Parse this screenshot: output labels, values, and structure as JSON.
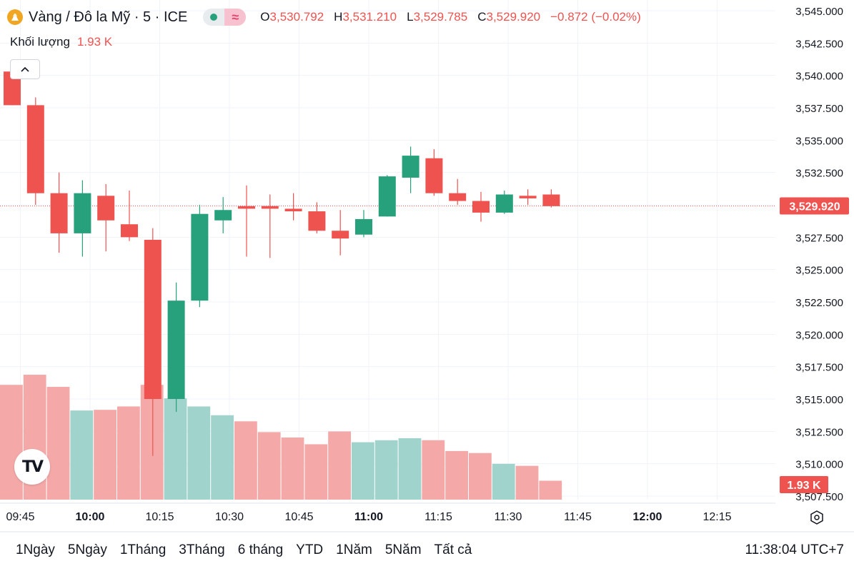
{
  "header": {
    "symbol_title": "Vàng / Đô la Mỹ · 5 · ICE",
    "market_status_icon": "dot-icon",
    "wave_icon": "≈",
    "ohlc": {
      "o_label": "O",
      "o_value": "3,530.792",
      "h_label": "H",
      "h_value": "3,531.210",
      "l_label": "L",
      "l_value": "3,529.785",
      "c_label": "C",
      "c_value": "3,529.920",
      "change": "−0.872 (−0.02%)"
    },
    "volume_label": "Khối lượng",
    "volume_value": "1.93 K"
  },
  "colors": {
    "up": "#26a17b",
    "down": "#ef5350",
    "up_vol": "#9fd3cc",
    "down_vol": "#f4a9a8",
    "grid": "#f0f3fa"
  },
  "chart_data": {
    "type": "candlestick",
    "y_ticks": [
      "3,545.000",
      "3,542.500",
      "3,540.000",
      "3,537.500",
      "3,535.000",
      "3,532.500",
      "3,530.000",
      "3,527.500",
      "3,525.000",
      "3,522.500",
      "3,520.000",
      "3,517.500",
      "3,515.000",
      "3,512.500",
      "3,510.000",
      "3,507.500"
    ],
    "ylim": [
      3507.5,
      3545.0
    ],
    "x_ticks": [
      "09:45",
      "10:00",
      "10:15",
      "10:30",
      "10:45",
      "11:00",
      "11:15",
      "11:30",
      "11:45",
      "12:00",
      "12:15"
    ],
    "bold_x_ticks": [
      "10:00",
      "11:00",
      "12:00"
    ],
    "last_price_label": "3,529.920",
    "last_price": 3529.92,
    "volume_label": "1.93 K",
    "volume_max": 1.93,
    "candles": [
      {
        "o": 3540.3,
        "h": 3540.3,
        "l": 3537.7,
        "c": 3537.7,
        "v": 1.7
      },
      {
        "o": 3537.7,
        "h": 3538.3,
        "l": 3530.0,
        "c": 3530.9,
        "v": 1.85
      },
      {
        "o": 3530.9,
        "h": 3532.5,
        "l": 3526.3,
        "c": 3527.8,
        "v": 1.67
      },
      {
        "o": 3527.8,
        "h": 3531.9,
        "l": 3526.0,
        "c": 3530.9,
        "v": 1.32
      },
      {
        "o": 3530.7,
        "h": 3531.6,
        "l": 3526.4,
        "c": 3528.8,
        "v": 1.33
      },
      {
        "o": 3528.5,
        "h": 3531.1,
        "l": 3527.2,
        "c": 3527.5,
        "v": 1.38
      },
      {
        "o": 3527.3,
        "h": 3528.2,
        "l": 3510.6,
        "c": 3515.0,
        "v": 1.7
      },
      {
        "o": 3515.0,
        "h": 3524.0,
        "l": 3514.0,
        "c": 3522.6,
        "v": 1.5
      },
      {
        "o": 3522.6,
        "h": 3530.0,
        "l": 3522.1,
        "c": 3529.3,
        "v": 1.38
      },
      {
        "o": 3528.8,
        "h": 3530.6,
        "l": 3527.8,
        "c": 3529.6,
        "v": 1.25
      },
      {
        "o": 3529.9,
        "h": 3531.5,
        "l": 3526.0,
        "c": 3529.7,
        "v": 1.16
      },
      {
        "o": 3529.9,
        "h": 3530.8,
        "l": 3525.9,
        "c": 3529.7,
        "v": 1.0
      },
      {
        "o": 3529.7,
        "h": 3530.9,
        "l": 3528.8,
        "c": 3529.5,
        "v": 0.92
      },
      {
        "o": 3529.5,
        "h": 3530.2,
        "l": 3527.8,
        "c": 3528.0,
        "v": 0.82
      },
      {
        "o": 3528.0,
        "h": 3529.6,
        "l": 3526.1,
        "c": 3527.4,
        "v": 1.01
      },
      {
        "o": 3527.7,
        "h": 3529.6,
        "l": 3527.5,
        "c": 3528.9,
        "v": 0.85
      },
      {
        "o": 3529.1,
        "h": 3532.3,
        "l": 3529.1,
        "c": 3532.2,
        "v": 0.88
      },
      {
        "o": 3532.1,
        "h": 3534.5,
        "l": 3530.9,
        "c": 3533.8,
        "v": 0.91
      },
      {
        "o": 3533.6,
        "h": 3534.3,
        "l": 3530.7,
        "c": 3530.9,
        "v": 0.88
      },
      {
        "o": 3530.9,
        "h": 3532.0,
        "l": 3530.0,
        "c": 3530.3,
        "v": 0.72
      },
      {
        "o": 3530.3,
        "h": 3531.0,
        "l": 3528.7,
        "c": 3529.4,
        "v": 0.69
      },
      {
        "o": 3529.4,
        "h": 3531.1,
        "l": 3529.3,
        "c": 3530.8,
        "v": 0.53
      },
      {
        "o": 3530.7,
        "h": 3531.2,
        "l": 3530.0,
        "c": 3530.5,
        "v": 0.5
      },
      {
        "o": 3530.8,
        "h": 3531.2,
        "l": 3529.8,
        "c": 3529.9,
        "v": 0.28
      }
    ]
  },
  "ranges": [
    "1Ngày",
    "5Ngày",
    "1Tháng",
    "3Tháng",
    "6 tháng",
    "YTD",
    "1Năm",
    "5Năm",
    "Tất cả"
  ],
  "clock": "11:38:04 UTC+7",
  "logo_text": "TV"
}
